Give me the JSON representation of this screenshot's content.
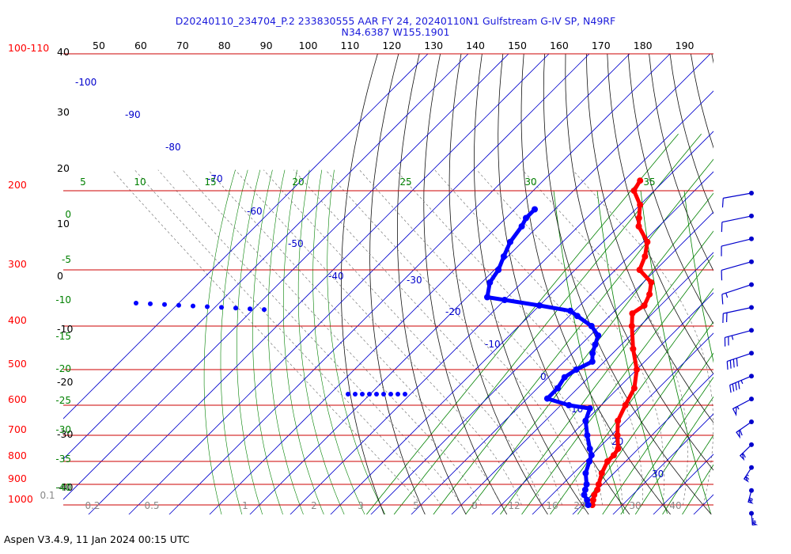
{
  "chart_data": {
    "type": "line",
    "title_line1": "D20240110_234704_P.2 233830555 AAR FY 24, 20240110N1 Gulfstream G-IV SP, N49RF",
    "title_line2": "N34.6387 W155.1901",
    "footer": "Aspen V3.4.9, 11 Jan 2024  00:15 UTC",
    "colors": {
      "isobar": "#cc0000",
      "temperature": "#ff0000",
      "dewpoint": "#0000ff",
      "isotherm": "#0000cc",
      "mixing_ratio": "#008000",
      "wind": "#0000cc",
      "pressure_label": "#ff0000",
      "temp_label": "#0000cc"
    },
    "pressure_labels": [
      "100-110",
      "200",
      "300",
      "400",
      "500",
      "600",
      "700",
      "800",
      "900",
      "1000"
    ],
    "top_axis_labels": [
      "50",
      "60",
      "70",
      "80",
      "90",
      "100",
      "110",
      "120",
      "130",
      "140",
      "150",
      "160",
      "170",
      "180",
      "190"
    ],
    "height_labels": [
      "40",
      "30",
      "20",
      "10",
      "0",
      "-10",
      "-20",
      "-30",
      "-40"
    ],
    "isotherm_labels": [
      "-100",
      "-90",
      "-80",
      "-70",
      "-60",
      "-50",
      "-40",
      "-30",
      "-20",
      "-10",
      "0",
      "10",
      "20",
      "30"
    ],
    "mixing_ratio_top_labels": [
      "5",
      "10",
      "15",
      "20",
      "25",
      "30",
      "35"
    ],
    "theta_e_labels": [
      "0",
      "-5",
      "-10",
      "-15",
      "-20",
      "-25",
      "-30",
      "-35",
      "-40"
    ],
    "mixing_ratio_bottom_labels": [
      "0.1",
      "0.2",
      "0.5",
      "1",
      "2",
      "3",
      "5",
      "8",
      "12",
      "16",
      "20",
      "30",
      "40"
    ],
    "series": [
      {
        "name": "temperature",
        "points": [
          [
            1000,
            12.5
          ],
          [
            975,
            11.5
          ],
          [
            950,
            10.5
          ],
          [
            925,
            10
          ],
          [
            900,
            9
          ],
          [
            850,
            7
          ],
          [
            800,
            5.5
          ],
          [
            775,
            5.5
          ],
          [
            750,
            5
          ],
          [
            700,
            1.5
          ],
          [
            650,
            -2
          ],
          [
            600,
            -4
          ],
          [
            550,
            -6
          ],
          [
            500,
            -10
          ],
          [
            450,
            -16
          ],
          [
            400,
            -22
          ],
          [
            375,
            -25
          ],
          [
            360,
            -24
          ],
          [
            340,
            -25.5
          ],
          [
            320,
            -28
          ],
          [
            300,
            -34
          ],
          [
            280,
            -36
          ],
          [
            260,
            -39
          ],
          [
            240,
            -45
          ],
          [
            230,
            -47
          ],
          [
            215,
            -50
          ],
          [
            200,
            -55
          ],
          [
            190,
            -56
          ]
        ]
      },
      {
        "name": "dewpoint",
        "points": [
          [
            1000,
            11.5
          ],
          [
            975,
            10
          ],
          [
            950,
            8
          ],
          [
            925,
            7
          ],
          [
            900,
            6
          ],
          [
            850,
            3
          ],
          [
            800,
            1
          ],
          [
            775,
            0
          ],
          [
            750,
            -2
          ],
          [
            700,
            -6
          ],
          [
            650,
            -10
          ],
          [
            610,
            -12
          ],
          [
            600,
            -18
          ],
          [
            580,
            -25
          ],
          [
            550,
            -25
          ],
          [
            520,
            -26
          ],
          [
            500,
            -25
          ],
          [
            480,
            -23
          ],
          [
            460,
            -25
          ],
          [
            440,
            -26.5
          ],
          [
            420,
            -28
          ],
          [
            400,
            -32
          ],
          [
            380,
            -38
          ],
          [
            370,
            -41
          ],
          [
            360,
            -50
          ],
          [
            350,
            -60
          ],
          [
            345,
            -65
          ],
          [
            320,
            -68
          ],
          [
            300,
            -69
          ],
          [
            280,
            -71
          ],
          [
            260,
            -73
          ],
          [
            240,
            -74
          ],
          [
            230,
            -75
          ],
          [
            220,
            -75
          ]
        ]
      }
    ],
    "wind_barbs_kt": [
      12,
      12,
      12,
      12,
      15,
      20,
      25,
      40,
      45,
      55,
      60,
      60,
      65,
      70,
      75
    ]
  }
}
